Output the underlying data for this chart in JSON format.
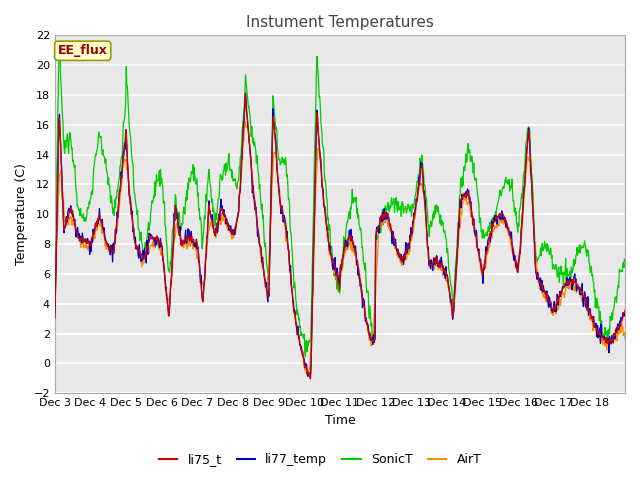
{
  "title": "Instument Temperatures",
  "xlabel": "Time",
  "ylabel": "Temperature (C)",
  "ylim": [
    -2,
    22
  ],
  "yticks": [
    -2,
    0,
    2,
    4,
    6,
    8,
    10,
    12,
    14,
    16,
    18,
    20,
    22
  ],
  "tick_labels": [
    "Dec 3",
    "Dec 4",
    "Dec 5",
    "Dec 6",
    "Dec 7",
    "Dec 8",
    "Dec 9",
    "Dec 10",
    "Dec 11",
    "Dec 12",
    "Dec 13",
    "Dec 14",
    "Dec 15",
    "Dec 16",
    "Dec 17",
    "Dec 18"
  ],
  "colors": {
    "li75_t": "#cc0000",
    "li77_temp": "#0000cc",
    "SonicT": "#00cc00",
    "AirT": "#ff8800"
  },
  "legend_label": "EE_flux",
  "fig_bg": "#ffffff",
  "plot_bg": "#e8e8e8",
  "title_fontsize": 11,
  "axis_fontsize": 9,
  "tick_fontsize": 8
}
